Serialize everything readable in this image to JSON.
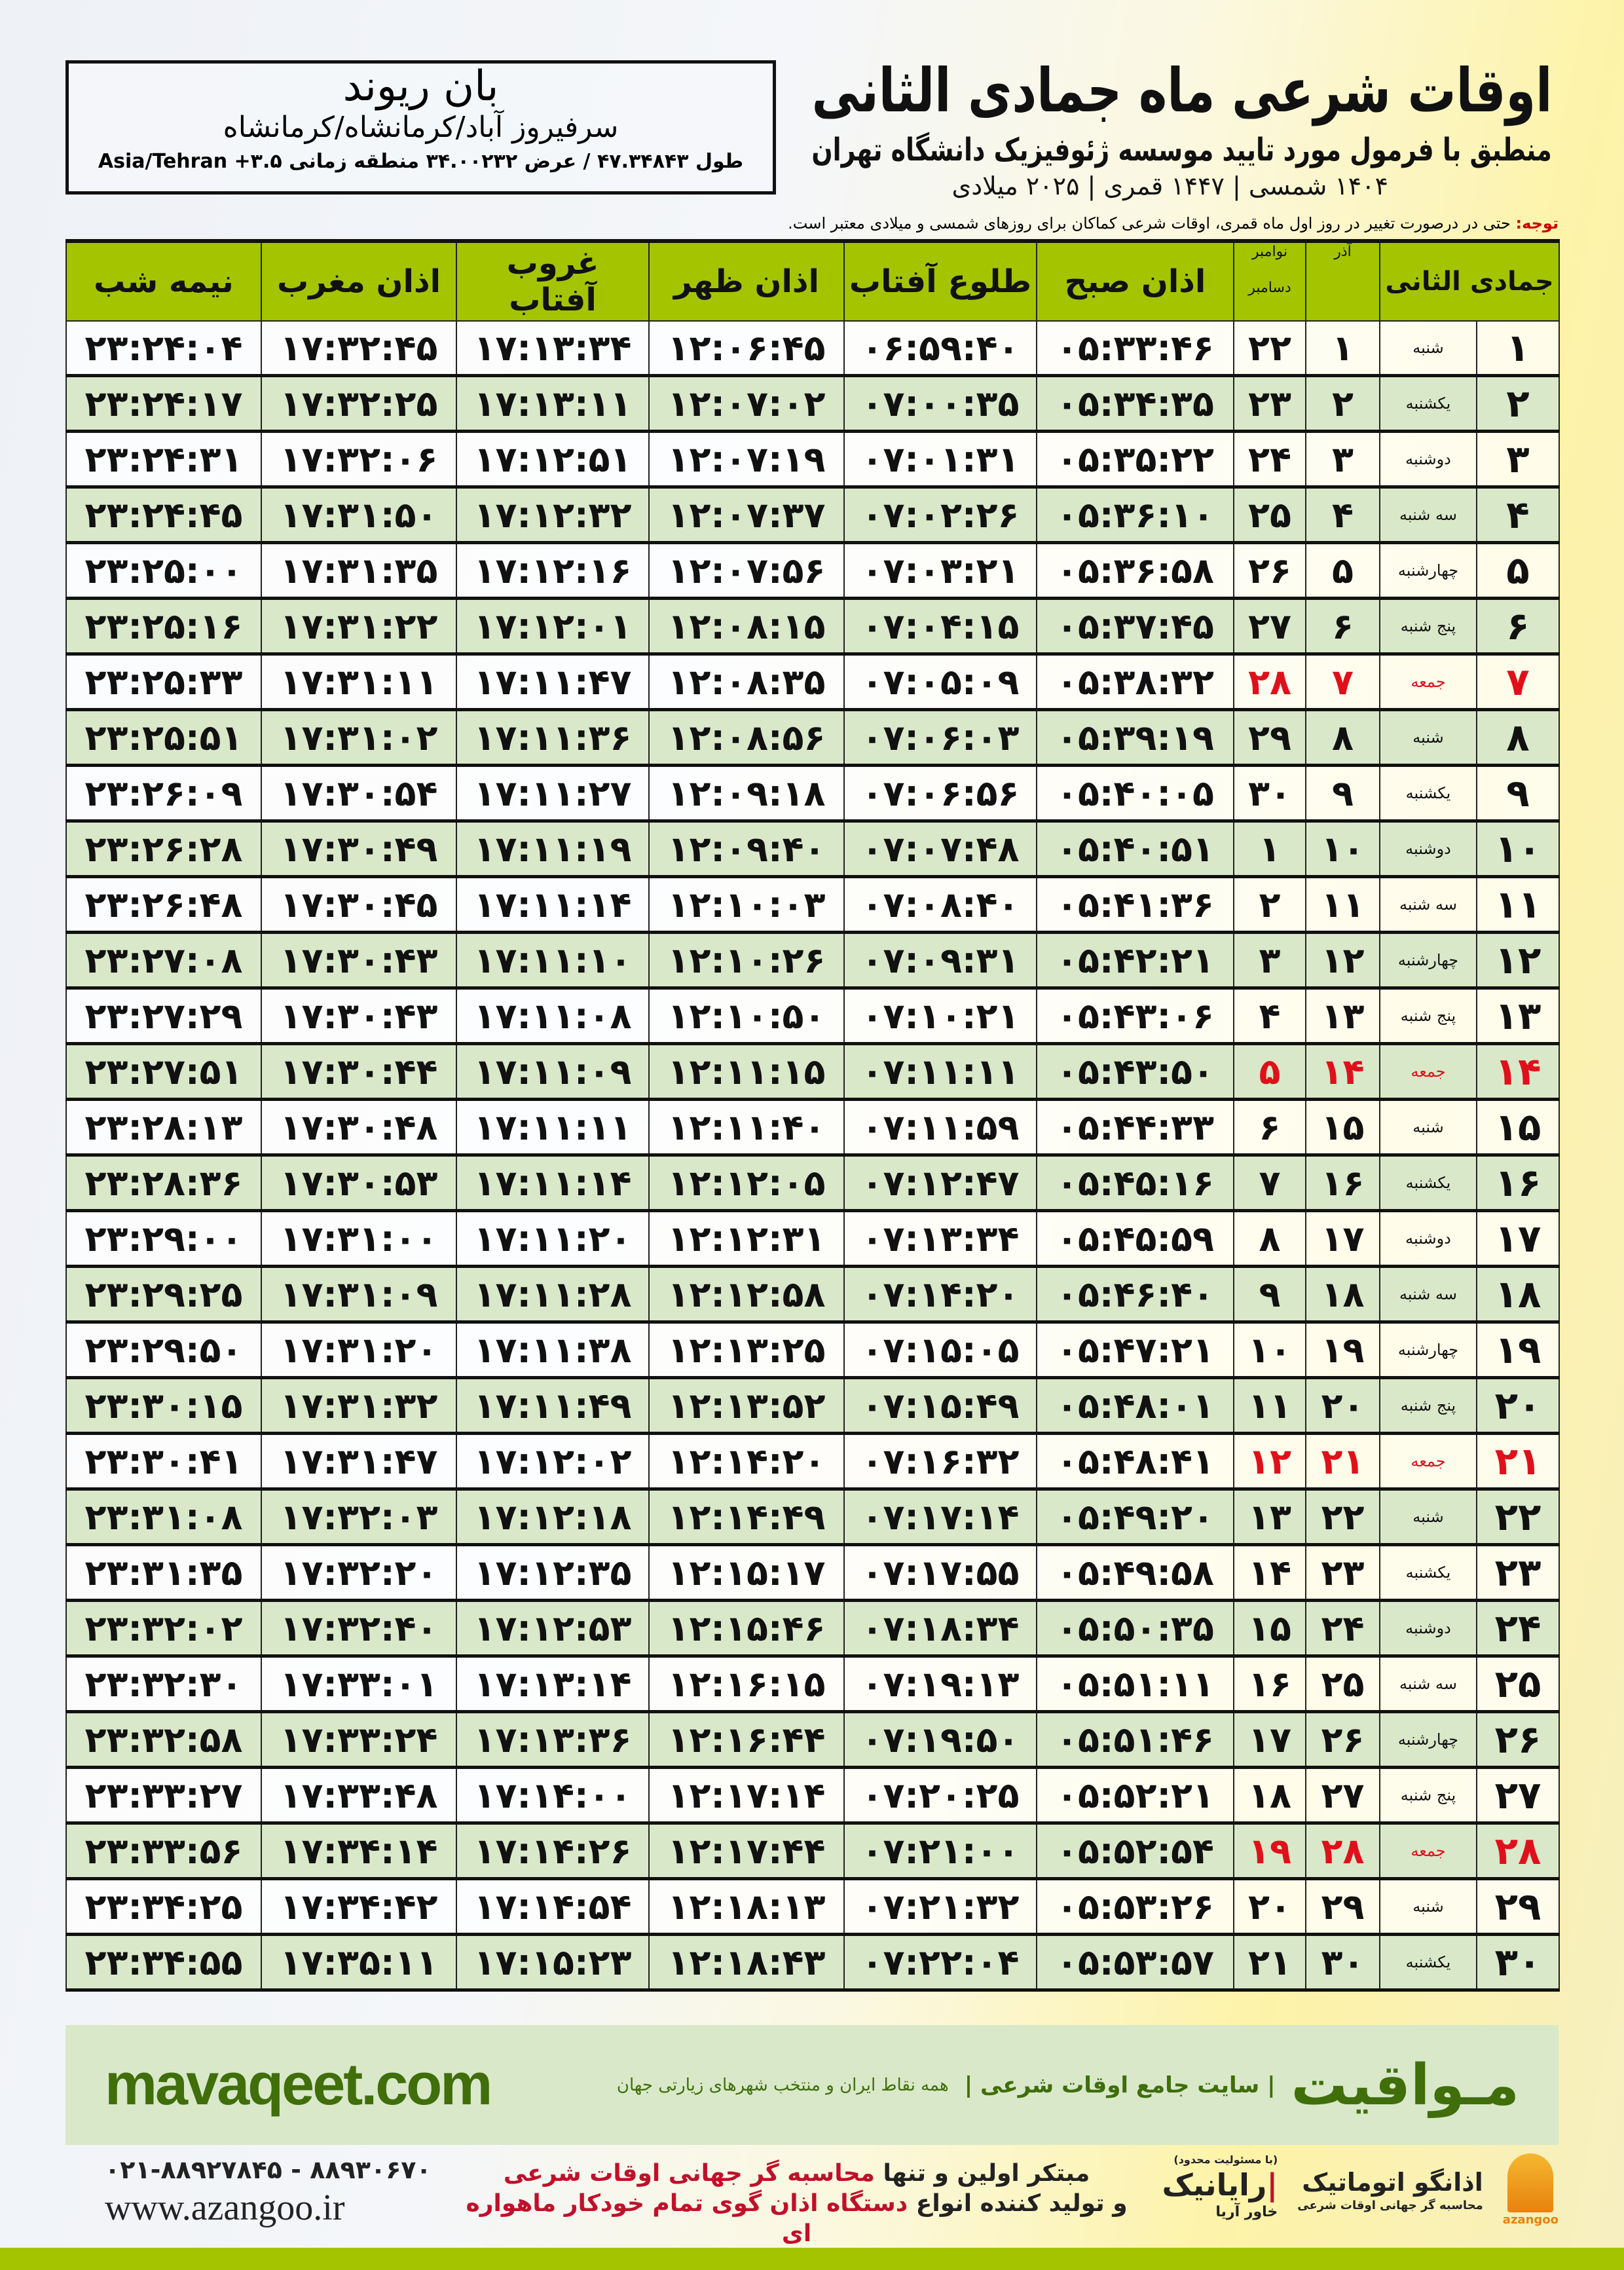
{
  "header": {
    "title": "اوقات شرعی ماه جمادی الثانی",
    "subtitle": "منطبق با فرمول مورد تایید موسسه ژئوفیزیک دانشگاه تهران",
    "years": "۱۴۰۴ شمسی | ۱۴۴۷ قمری | ۲۰۲۵ میلادی"
  },
  "location": {
    "name": "بان ریوند",
    "path": "سرفیروز آباد/کرمانشاه/کرمانشاه",
    "coords": "طول ۴۷.۳۴۸۴۳ / عرض ۳۴.۰۰۲۳۲ منطقه زمانی ۳.۵+ Asia/Tehran"
  },
  "note": {
    "label": "توجه:",
    "text": " حتی در درصورت تغییر در روز اول ماه قمری، اوقات شرعی کماکان برای روزهای شمسی و میلادی معتبر است."
  },
  "table": {
    "headers": {
      "hijri": "جمادی الثانی",
      "azar": "آذر",
      "gregorian_top": "نوامبر",
      "gregorian_bottom": "دسامبر",
      "fajr": "اذان صبح",
      "sunrise": "طلوع آفتاب",
      "dhuhr": "اذان ظهر",
      "sunset": "غروب آفتاب",
      "maghrib": "اذان مغرب",
      "midnight": "نیمه شب"
    },
    "holiday_color": "#e0101a",
    "header_color": "#a5c400",
    "alt_row_color": "#d9e8c9",
    "rows": [
      [
        "۱",
        "شنبه",
        "۱",
        "۲۲",
        "۰۵:۳۳:۴۶",
        "۰۶:۵۹:۴۰",
        "۱۲:۰۶:۴۵",
        "۱۷:۱۳:۳۴",
        "۱۷:۳۲:۴۵",
        "۲۳:۲۴:۰۴"
      ],
      [
        "۲",
        "یکشنبه",
        "۲",
        "۲۳",
        "۰۵:۳۴:۳۵",
        "۰۷:۰۰:۳۵",
        "۱۲:۰۷:۰۲",
        "۱۷:۱۳:۱۱",
        "۱۷:۳۲:۲۵",
        "۲۳:۲۴:۱۷"
      ],
      [
        "۳",
        "دوشنبه",
        "۳",
        "۲۴",
        "۰۵:۳۵:۲۲",
        "۰۷:۰۱:۳۱",
        "۱۲:۰۷:۱۹",
        "۱۷:۱۲:۵۱",
        "۱۷:۳۲:۰۶",
        "۲۳:۲۴:۳۱"
      ],
      [
        "۴",
        "سه شنبه",
        "۴",
        "۲۵",
        "۰۵:۳۶:۱۰",
        "۰۷:۰۲:۲۶",
        "۱۲:۰۷:۳۷",
        "۱۷:۱۲:۳۲",
        "۱۷:۳۱:۵۰",
        "۲۳:۲۴:۴۵"
      ],
      [
        "۵",
        "چهارشنبه",
        "۵",
        "۲۶",
        "۰۵:۳۶:۵۸",
        "۰۷:۰۳:۲۱",
        "۱۲:۰۷:۵۶",
        "۱۷:۱۲:۱۶",
        "۱۷:۳۱:۳۵",
        "۲۳:۲۵:۰۰"
      ],
      [
        "۶",
        "پنج شنبه",
        "۶",
        "۲۷",
        "۰۵:۳۷:۴۵",
        "۰۷:۰۴:۱۵",
        "۱۲:۰۸:۱۵",
        "۱۷:۱۲:۰۱",
        "۱۷:۳۱:۲۲",
        "۲۳:۲۵:۱۶"
      ],
      [
        "۷",
        "جمعه",
        "۷",
        "۲۸",
        "۰۵:۳۸:۳۲",
        "۰۷:۰۵:۰۹",
        "۱۲:۰۸:۳۵",
        "۱۷:۱۱:۴۷",
        "۱۷:۳۱:۱۱",
        "۲۳:۲۵:۳۳"
      ],
      [
        "۸",
        "شنبه",
        "۸",
        "۲۹",
        "۰۵:۳۹:۱۹",
        "۰۷:۰۶:۰۳",
        "۱۲:۰۸:۵۶",
        "۱۷:۱۱:۳۶",
        "۱۷:۳۱:۰۲",
        "۲۳:۲۵:۵۱"
      ],
      [
        "۹",
        "یکشنبه",
        "۹",
        "۳۰",
        "۰۵:۴۰:۰۵",
        "۰۷:۰۶:۵۶",
        "۱۲:۰۹:۱۸",
        "۱۷:۱۱:۲۷",
        "۱۷:۳۰:۵۴",
        "۲۳:۲۶:۰۹"
      ],
      [
        "۱۰",
        "دوشنبه",
        "۱۰",
        "۱",
        "۰۵:۴۰:۵۱",
        "۰۷:۰۷:۴۸",
        "۱۲:۰۹:۴۰",
        "۱۷:۱۱:۱۹",
        "۱۷:۳۰:۴۹",
        "۲۳:۲۶:۲۸"
      ],
      [
        "۱۱",
        "سه شنبه",
        "۱۱",
        "۲",
        "۰۵:۴۱:۳۶",
        "۰۷:۰۸:۴۰",
        "۱۲:۱۰:۰۳",
        "۱۷:۱۱:۱۴",
        "۱۷:۳۰:۴۵",
        "۲۳:۲۶:۴۸"
      ],
      [
        "۱۲",
        "چهارشنبه",
        "۱۲",
        "۳",
        "۰۵:۴۲:۲۱",
        "۰۷:۰۹:۳۱",
        "۱۲:۱۰:۲۶",
        "۱۷:۱۱:۱۰",
        "۱۷:۳۰:۴۳",
        "۲۳:۲۷:۰۸"
      ],
      [
        "۱۳",
        "پنج شنبه",
        "۱۳",
        "۴",
        "۰۵:۴۳:۰۶",
        "۰۷:۱۰:۲۱",
        "۱۲:۱۰:۵۰",
        "۱۷:۱۱:۰۸",
        "۱۷:۳۰:۴۳",
        "۲۳:۲۷:۲۹"
      ],
      [
        "۱۴",
        "جمعه",
        "۱۴",
        "۵",
        "۰۵:۴۳:۵۰",
        "۰۷:۱۱:۱۱",
        "۱۲:۱۱:۱۵",
        "۱۷:۱۱:۰۹",
        "۱۷:۳۰:۴۴",
        "۲۳:۲۷:۵۱"
      ],
      [
        "۱۵",
        "شنبه",
        "۱۵",
        "۶",
        "۰۵:۴۴:۳۳",
        "۰۷:۱۱:۵۹",
        "۱۲:۱۱:۴۰",
        "۱۷:۱۱:۱۱",
        "۱۷:۳۰:۴۸",
        "۲۳:۲۸:۱۳"
      ],
      [
        "۱۶",
        "یکشنبه",
        "۱۶",
        "۷",
        "۰۵:۴۵:۱۶",
        "۰۷:۱۲:۴۷",
        "۱۲:۱۲:۰۵",
        "۱۷:۱۱:۱۴",
        "۱۷:۳۰:۵۳",
        "۲۳:۲۸:۳۶"
      ],
      [
        "۱۷",
        "دوشنبه",
        "۱۷",
        "۸",
        "۰۵:۴۵:۵۹",
        "۰۷:۱۳:۳۴",
        "۱۲:۱۲:۳۱",
        "۱۷:۱۱:۲۰",
        "۱۷:۳۱:۰۰",
        "۲۳:۲۹:۰۰"
      ],
      [
        "۱۸",
        "سه شنبه",
        "۱۸",
        "۹",
        "۰۵:۴۶:۴۰",
        "۰۷:۱۴:۲۰",
        "۱۲:۱۲:۵۸",
        "۱۷:۱۱:۲۸",
        "۱۷:۳۱:۰۹",
        "۲۳:۲۹:۲۵"
      ],
      [
        "۱۹",
        "چهارشنبه",
        "۱۹",
        "۱۰",
        "۰۵:۴۷:۲۱",
        "۰۷:۱۵:۰۵",
        "۱۲:۱۳:۲۵",
        "۱۷:۱۱:۳۸",
        "۱۷:۳۱:۲۰",
        "۲۳:۲۹:۵۰"
      ],
      [
        "۲۰",
        "پنج شنبه",
        "۲۰",
        "۱۱",
        "۰۵:۴۸:۰۱",
        "۰۷:۱۵:۴۹",
        "۱۲:۱۳:۵۲",
        "۱۷:۱۱:۴۹",
        "۱۷:۳۱:۳۲",
        "۲۳:۳۰:۱۵"
      ],
      [
        "۲۱",
        "جمعه",
        "۲۱",
        "۱۲",
        "۰۵:۴۸:۴۱",
        "۰۷:۱۶:۳۲",
        "۱۲:۱۴:۲۰",
        "۱۷:۱۲:۰۲",
        "۱۷:۳۱:۴۷",
        "۲۳:۳۰:۴۱"
      ],
      [
        "۲۲",
        "شنبه",
        "۲۲",
        "۱۳",
        "۰۵:۴۹:۲۰",
        "۰۷:۱۷:۱۴",
        "۱۲:۱۴:۴۹",
        "۱۷:۱۲:۱۸",
        "۱۷:۳۲:۰۳",
        "۲۳:۳۱:۰۸"
      ],
      [
        "۲۳",
        "یکشنبه",
        "۲۳",
        "۱۴",
        "۰۵:۴۹:۵۸",
        "۰۷:۱۷:۵۵",
        "۱۲:۱۵:۱۷",
        "۱۷:۱۲:۳۵",
        "۱۷:۳۲:۲۰",
        "۲۳:۳۱:۳۵"
      ],
      [
        "۲۴",
        "دوشنبه",
        "۲۴",
        "۱۵",
        "۰۵:۵۰:۳۵",
        "۰۷:۱۸:۳۴",
        "۱۲:۱۵:۴۶",
        "۱۷:۱۲:۵۳",
        "۱۷:۳۲:۴۰",
        "۲۳:۳۲:۰۲"
      ],
      [
        "۲۵",
        "سه شنبه",
        "۲۵",
        "۱۶",
        "۰۵:۵۱:۱۱",
        "۰۷:۱۹:۱۳",
        "۱۲:۱۶:۱۵",
        "۱۷:۱۳:۱۴",
        "۱۷:۳۳:۰۱",
        "۲۳:۳۲:۳۰"
      ],
      [
        "۲۶",
        "چهارشنبه",
        "۲۶",
        "۱۷",
        "۰۵:۵۱:۴۶",
        "۰۷:۱۹:۵۰",
        "۱۲:۱۶:۴۴",
        "۱۷:۱۳:۳۶",
        "۱۷:۳۳:۲۴",
        "۲۳:۳۲:۵۸"
      ],
      [
        "۲۷",
        "پنج شنبه",
        "۲۷",
        "۱۸",
        "۰۵:۵۲:۲۱",
        "۰۷:۲۰:۲۵",
        "۱۲:۱۷:۱۴",
        "۱۷:۱۴:۰۰",
        "۱۷:۳۳:۴۸",
        "۲۳:۳۳:۲۷"
      ],
      [
        "۲۸",
        "جمعه",
        "۲۸",
        "۱۹",
        "۰۵:۵۲:۵۴",
        "۰۷:۲۱:۰۰",
        "۱۲:۱۷:۴۴",
        "۱۷:۱۴:۲۶",
        "۱۷:۳۴:۱۴",
        "۲۳:۳۳:۵۶"
      ],
      [
        "۲۹",
        "شنبه",
        "۲۹",
        "۲۰",
        "۰۵:۵۳:۲۶",
        "۰۷:۲۱:۳۲",
        "۱۲:۱۸:۱۳",
        "۱۷:۱۴:۵۴",
        "۱۷:۳۴:۴۲",
        "۲۳:۳۴:۲۵"
      ],
      [
        "۳۰",
        "یکشنبه",
        "۳۰",
        "۲۱",
        "۰۵:۵۳:۵۷",
        "۰۷:۲۲:۰۴",
        "۱۲:۱۸:۴۳",
        "۱۷:۱۵:۲۳",
        "۱۷:۳۵:۱۱",
        "۲۳:۳۴:۵۵"
      ]
    ]
  },
  "footer": {
    "brand": "مـواقیت",
    "tagline": "| سایت جامع اوقات شرعی |",
    "tagline2": "همه نقاط ایران و منتخب شهرهای زیارتی جهان",
    "site": "mavaqeet.com",
    "phone": "۰۲۱-۸۸۹۲۷۸۴۵ - ۸۸۹۳۰۶۷۰",
    "web": "www.azangoo.ir",
    "promo1_a": "مبتکر اولین و تنها ",
    "promo1_b": "محاسبه گر جهانی اوقات شرعی",
    "promo2_a": "و تولید کننده انواع ",
    "promo2_b": "دستگاه اذان گوی تمام خودکار ماهواره ای",
    "rayanik": "رایانیک",
    "rayanik_sub": "خاور آریا",
    "rayanik_note": "(با مسئولیت محدود)",
    "azangoo": "اذانگو اتوماتیک",
    "azangoo_sub": "محاسبه گر جهانی اوقات شرعی",
    "azangoo_en": "azangoo",
    "brand_color": "#3f6e0a"
  }
}
